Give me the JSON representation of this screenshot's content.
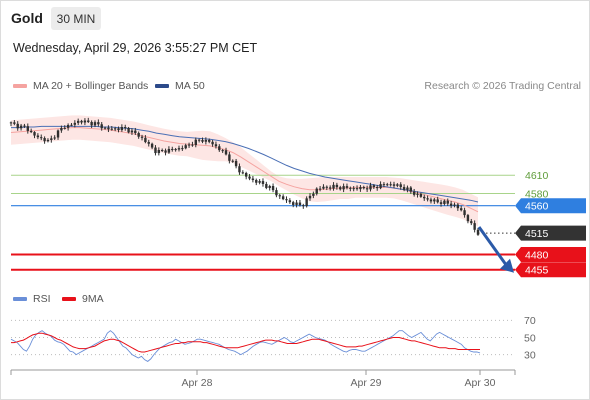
{
  "header": {
    "instrument": "Gold",
    "timeframe": "30 MIN",
    "timestamp": "Wednesday, April 29, 2026 3:55:27 PM CET",
    "credit": "Research © 2026 Trading Central"
  },
  "colors": {
    "bollinger_line": "#f5a3a0",
    "bollinger_band": "#fde6e4",
    "ma50": "#4a6fb5",
    "candle": "#2f2f2f",
    "level_green": "#a8d48a",
    "level_blue": "#2f7fe0",
    "level_red": "#e8111a",
    "current_price_tag": "#333333",
    "rsi_line": "#6a8fd8",
    "rsi_9ma": "#e8111a"
  },
  "chart_data": [
    {
      "type": "candlestick",
      "legend": [
        {
          "name": "MA 20 + Bollinger Bands",
          "color": "#f5a3a0"
        },
        {
          "name": "MA 50",
          "color": "#4a6fb5"
        }
      ],
      "x_ticks": [
        "Apr 28",
        "Apr 29",
        "Apr 30"
      ],
      "ylim": [
        4440,
        4720
      ],
      "close_path": [
        4695,
        4690,
        4688,
        4675,
        4670,
        4665,
        4680,
        4690,
        4693,
        4700,
        4696,
        4695,
        4688,
        4685,
        4687,
        4686,
        4680,
        4672,
        4660,
        4648,
        4650,
        4652,
        4654,
        4658,
        4665,
        4668,
        4664,
        4655,
        4645,
        4630,
        4615,
        4605,
        4600,
        4595,
        4588,
        4575,
        4568,
        4563,
        4560,
        4575,
        4588,
        4590,
        4591,
        4590,
        4589,
        4588,
        4589,
        4590,
        4592,
        4596,
        4594,
        4591,
        4585,
        4578,
        4572,
        4568,
        4566,
        4564,
        4560,
        4550,
        4530,
        4515
      ],
      "ma20_path": [
        4680,
        4681,
        4682,
        4683,
        4684,
        4685,
        4686,
        4687,
        4688,
        4688,
        4687,
        4686,
        4685,
        4684,
        4682,
        4680,
        4678,
        4675,
        4672,
        4669,
        4666,
        4664,
        4662,
        4661,
        4660,
        4659,
        4658,
        4655,
        4652,
        4647,
        4640,
        4632,
        4624,
        4616,
        4608,
        4600,
        4595,
        4591,
        4588,
        4586,
        4586,
        4587,
        4588,
        4589,
        4589,
        4590,
        4590,
        4590,
        4590,
        4590,
        4589,
        4587,
        4584,
        4581,
        4578,
        4575,
        4572,
        4569,
        4566,
        4562,
        4556,
        4550
      ],
      "bb_upper_path": [
        4700,
        4701,
        4702,
        4703,
        4704,
        4705,
        4706,
        4707,
        4708,
        4708,
        4707,
        4706,
        4705,
        4704,
        4702,
        4700,
        4698,
        4695,
        4692,
        4689,
        4686,
        4684,
        4682,
        4681,
        4682,
        4683,
        4682,
        4677,
        4671,
        4664,
        4656,
        4646,
        4636,
        4626,
        4616,
        4608,
        4605,
        4604,
        4604,
        4605,
        4606,
        4607,
        4607,
        4607,
        4607,
        4607,
        4607,
        4607,
        4607,
        4607,
        4606,
        4605,
        4603,
        4601,
        4599,
        4597,
        4595,
        4593,
        4590,
        4586,
        4580,
        4574
      ],
      "bb_lower_path": [
        4660,
        4661,
        4662,
        4663,
        4664,
        4665,
        4666,
        4667,
        4668,
        4668,
        4667,
        4666,
        4665,
        4664,
        4662,
        4660,
        4658,
        4655,
        4652,
        4649,
        4646,
        4644,
        4642,
        4641,
        4638,
        4635,
        4634,
        4633,
        4633,
        4630,
        4624,
        4618,
        4612,
        4606,
        4600,
        4592,
        4585,
        4578,
        4572,
        4567,
        4566,
        4567,
        4569,
        4571,
        4571,
        4573,
        4573,
        4573,
        4573,
        4573,
        4572,
        4569,
        4565,
        4561,
        4557,
        4553,
        4549,
        4545,
        4542,
        4538,
        4532,
        4526
      ],
      "ma50_path": [
        4688,
        4688,
        4689,
        4689,
        4690,
        4690,
        4690,
        4690,
        4690,
        4690,
        4690,
        4690,
        4689,
        4689,
        4688,
        4687,
        4686,
        4684,
        4682,
        4679,
        4677,
        4675,
        4673,
        4672,
        4671,
        4670,
        4669,
        4667,
        4665,
        4662,
        4658,
        4654,
        4649,
        4644,
        4638,
        4632,
        4626,
        4621,
        4617,
        4613,
        4610,
        4607,
        4605,
        4603,
        4601,
        4599,
        4597,
        4595,
        4593,
        4591,
        4589,
        4587,
        4585,
        4583,
        4581,
        4579,
        4577,
        4575,
        4573,
        4571,
        4569,
        4566
      ],
      "levels": [
        {
          "value": 4610,
          "label": "4610",
          "style": "resistance"
        },
        {
          "value": 4580,
          "label": "4580",
          "style": "resistance"
        },
        {
          "value": 4560,
          "label": "4560",
          "style": "pivot"
        },
        {
          "value": 4515,
          "label": "4515",
          "style": "current"
        },
        {
          "value": 4480,
          "label": "4480",
          "style": "support"
        },
        {
          "value": 4455,
          "label": "4455",
          "style": "support"
        }
      ],
      "forecast_arrow": {
        "from": 4525,
        "to": 4455,
        "direction": "down"
      }
    },
    {
      "type": "line",
      "legend": [
        {
          "name": "RSI",
          "color": "#6a8fd8"
        },
        {
          "name": "9MA",
          "color": "#e8111a"
        }
      ],
      "y_ticks": [
        70,
        50,
        30
      ],
      "ylim": [
        20,
        80
      ],
      "rsi_path": [
        48,
        46,
        44,
        40,
        36,
        34,
        40,
        48,
        53,
        56,
        58,
        55,
        53,
        51,
        47,
        45,
        44,
        42,
        38,
        34,
        33,
        30,
        32,
        34,
        36,
        38,
        40,
        42,
        44,
        46,
        48,
        55,
        58,
        55,
        50,
        45,
        40,
        38,
        34,
        30,
        28,
        26,
        28,
        24,
        22,
        25,
        30,
        34,
        38,
        40,
        42,
        44,
        45,
        48,
        46,
        44,
        42,
        43,
        44,
        46,
        48,
        48,
        47,
        46,
        45,
        44,
        43,
        42,
        40,
        38,
        36,
        35,
        34,
        32,
        30,
        32,
        34,
        37,
        40,
        42,
        44,
        45,
        44,
        43,
        42,
        44,
        46,
        48,
        50,
        48,
        45,
        44,
        46,
        48,
        50,
        52,
        54,
        52,
        50,
        49,
        48,
        47,
        45,
        42,
        40,
        38,
        36,
        34,
        33,
        35,
        36,
        36,
        35,
        34,
        34,
        36,
        38,
        40,
        42,
        44,
        46,
        48,
        50,
        52,
        55,
        58,
        58,
        55,
        52,
        50,
        52,
        54,
        56,
        52,
        48,
        46,
        50,
        54,
        56,
        54,
        52,
        50,
        48,
        46,
        44,
        42,
        38,
        36,
        34,
        33,
        33,
        32
      ],
      "ma9_path": [
        44,
        44,
        45,
        46,
        47,
        49,
        51,
        53,
        54,
        55,
        55,
        54,
        53,
        52,
        50,
        48,
        47,
        45,
        43,
        41,
        39,
        38,
        37,
        37,
        37,
        38,
        39,
        40,
        42,
        44,
        46,
        47,
        48,
        48,
        47,
        46,
        44,
        42,
        40,
        38,
        36,
        34,
        33,
        33,
        34,
        35,
        36,
        37,
        38,
        39,
        40,
        41,
        42,
        43,
        43,
        44,
        44,
        45,
        45,
        45,
        45,
        45,
        44,
        44,
        43,
        42,
        41,
        40,
        39,
        38,
        38,
        38,
        38,
        38,
        39,
        40,
        41,
        42,
        43,
        44,
        45,
        46,
        47,
        47,
        47,
        46,
        46,
        45,
        44,
        43,
        43,
        43,
        43,
        44,
        45,
        46,
        47,
        48,
        48,
        48,
        47,
        46,
        45,
        44,
        43,
        42,
        41,
        40,
        39,
        39,
        39,
        39,
        40,
        40,
        41,
        42,
        43,
        44,
        45,
        46,
        47,
        48,
        49,
        50,
        50,
        50,
        49,
        48,
        47,
        46,
        46,
        45,
        44,
        43,
        42,
        41,
        40,
        39,
        38,
        38,
        38,
        37,
        37,
        37,
        36,
        36,
        36,
        36,
        36,
        36,
        36,
        36
      ]
    }
  ]
}
